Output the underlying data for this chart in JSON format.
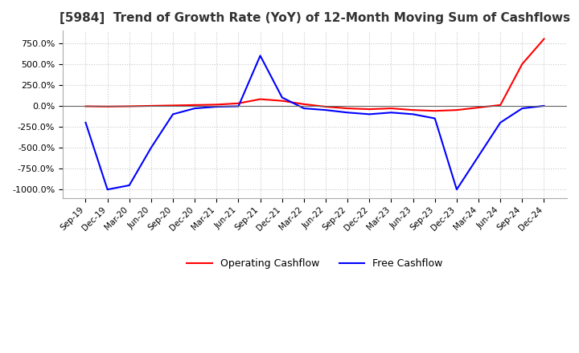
{
  "title": "[5984]  Trend of Growth Rate (YoY) of 12-Month Moving Sum of Cashflows",
  "title_fontsize": 11,
  "ylim": [
    -1100,
    900
  ],
  "yticks": [
    -1000,
    -750,
    -500,
    -250,
    0,
    250,
    500,
    750
  ],
  "yticklabels": [
    "-1000.0%",
    "-750.0%",
    "-500.0%",
    "-250.0%",
    "0.0%",
    "250.0%",
    "500.0%",
    "750.0%"
  ],
  "background_color": "#ffffff",
  "grid_color": "#c8c8c8",
  "x_labels": [
    "Sep-19",
    "Dec-19",
    "Mar-20",
    "Jun-20",
    "Sep-20",
    "Dec-20",
    "Mar-21",
    "Jun-21",
    "Sep-21",
    "Dec-21",
    "Mar-22",
    "Jun-22",
    "Sep-22",
    "Dec-22",
    "Mar-23",
    "Jun-23",
    "Sep-23",
    "Dec-23",
    "Mar-24",
    "Jun-24",
    "Sep-24",
    "Dec-24"
  ],
  "operating_cashflow": [
    -5.0,
    -8.0,
    -5.0,
    0.0,
    5.0,
    10.0,
    15.0,
    30.0,
    80.0,
    60.0,
    20.0,
    -10.0,
    -30.0,
    -40.0,
    -30.0,
    -50.0,
    -60.0,
    -50.0,
    -20.0,
    10.0,
    500.0,
    800.0
  ],
  "free_cashflow": [
    -200.0,
    -1000.0,
    -950.0,
    -500.0,
    -100.0,
    -30.0,
    -10.0,
    -5.0,
    600.0,
    100.0,
    -30.0,
    -50.0,
    -80.0,
    -100.0,
    -80.0,
    -100.0,
    -150.0,
    -1000.0,
    -600.0,
    -200.0,
    -30.0,
    0.0
  ],
  "op_color": "#ff0000",
  "fc_color": "#0000ff",
  "legend_labels": [
    "Operating Cashflow",
    "Free Cashflow"
  ]
}
